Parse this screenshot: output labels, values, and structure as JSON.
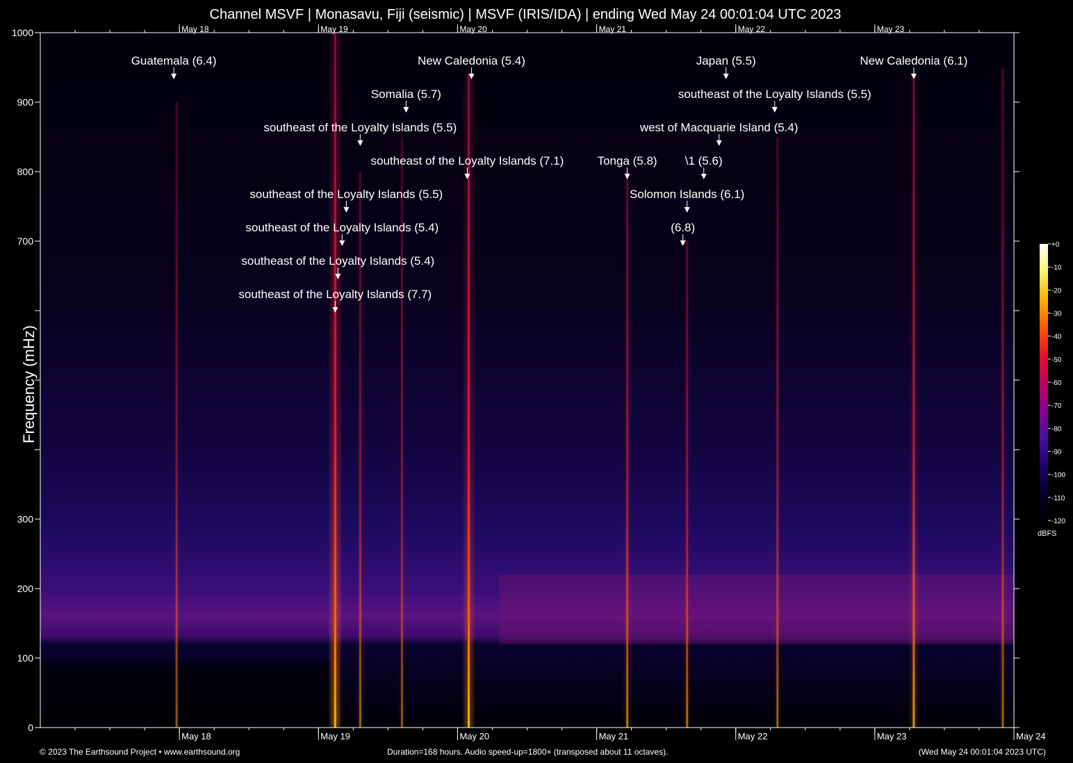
{
  "chart_data": {
    "type": "heatmap",
    "title": "Channel MSVF | Monasavu, Fiji (seismic) | MSVF (IRIS/IDA) | ending Wed May 24 00:01:04 UTC 2023",
    "ylabel": "Frequency (mHz)",
    "xlabel": "",
    "ylim": [
      0,
      1000
    ],
    "y_ticks": [
      {
        "value": 0,
        "label": "0"
      },
      {
        "value": 100,
        "label": "100"
      },
      {
        "value": 200,
        "label": "200"
      },
      {
        "value": 300,
        "label": "300"
      },
      {
        "value": 400,
        "label": ""
      },
      {
        "value": 500,
        "label": ""
      },
      {
        "value": 600,
        "label": ""
      },
      {
        "value": 700,
        "label": "700"
      },
      {
        "value": 800,
        "label": "800"
      },
      {
        "value": 900,
        "label": "900"
      },
      {
        "value": 1000,
        "label": "1000"
      }
    ],
    "x_range_days": [
      0,
      7
    ],
    "x_ticks": [
      {
        "day": 1,
        "label": "May 18"
      },
      {
        "day": 2,
        "label": "May 19"
      },
      {
        "day": 3,
        "label": "May 20"
      },
      {
        "day": 4,
        "label": "May 21"
      },
      {
        "day": 5,
        "label": "May 22"
      },
      {
        "day": 6,
        "label": "May 23"
      },
      {
        "day": 7,
        "label": "May 24"
      }
    ],
    "colorbar": {
      "label": "dBFS",
      "range": [
        -120,
        0
      ],
      "ticks": [
        "+0",
        "-10",
        "-20",
        "-30",
        "-40",
        "-50",
        "-60",
        "-70",
        "-80",
        "-90",
        "-100",
        "-110",
        "-120"
      ],
      "colors": [
        "#ffffff",
        "#fff36a",
        "#ffb000",
        "#ff5a00",
        "#e8102a",
        "#c00060",
        "#8a0090",
        "#4a10a0",
        "#200070",
        "#06002a",
        "#000000"
      ]
    },
    "events": [
      {
        "label": "Guatemala (6.4)",
        "day": 0.96,
        "row": 0
      },
      {
        "label": "New Caledonia (5.4)",
        "day": 3.1,
        "row": 0
      },
      {
        "label": "Japan (5.5)",
        "day": 4.93,
        "row": 0
      },
      {
        "label": "New Caledonia (6.1)",
        "day": 6.28,
        "row": 0
      },
      {
        "label": "Somalia (5.7)",
        "day": 2.63,
        "row": 1
      },
      {
        "label": "southeast of the Loyalty Islands (5.5)",
        "day": 5.28,
        "row": 1
      },
      {
        "label": "southeast of the Loyalty Islands (5.5)",
        "day": 2.3,
        "row": 2
      },
      {
        "label": "west of Macquarie Island (5.4)",
        "day": 4.88,
        "row": 2
      },
      {
        "label": "southeast of the Loyalty Islands (7.1)",
        "day": 3.07,
        "row": 3
      },
      {
        "label": "Tonga (5.8)",
        "day": 4.22,
        "row": 3
      },
      {
        "label": "\\1 (5.6)",
        "day": 4.77,
        "row": 3
      },
      {
        "label": "southeast of the Loyalty Islands (5.5)",
        "day": 2.2,
        "row": 4
      },
      {
        "label": "Solomon Islands (6.1)",
        "day": 4.65,
        "row": 4
      },
      {
        "label": "southeast of the Loyalty Islands (5.4)",
        "day": 2.17,
        "row": 5
      },
      {
        "label": "(6.8)",
        "day": 4.62,
        "row": 5
      },
      {
        "label": "southeast of the Loyalty Islands (5.4)",
        "day": 2.14,
        "row": 6
      },
      {
        "label": "southeast of the Loyalty Islands (7.7)",
        "day": 2.12,
        "row": 7
      }
    ],
    "spectral_lines": [
      {
        "day": 2.12,
        "intensity": 1.0,
        "top": 1000
      },
      {
        "day": 3.08,
        "intensity": 0.85,
        "top": 940
      },
      {
        "day": 6.28,
        "intensity": 0.5,
        "top": 940
      },
      {
        "day": 4.22,
        "intensity": 0.35,
        "top": 800
      },
      {
        "day": 4.65,
        "intensity": 0.3,
        "top": 700
      },
      {
        "day": 0.98,
        "intensity": 0.2,
        "top": 900
      },
      {
        "day": 5.3,
        "intensity": 0.25,
        "top": 850
      },
      {
        "day": 2.3,
        "intensity": 0.25,
        "top": 800
      },
      {
        "day": 2.6,
        "intensity": 0.2,
        "top": 850
      },
      {
        "day": 6.92,
        "intensity": 0.25,
        "top": 950
      }
    ]
  },
  "footer": {
    "left": "© 2023 The Earthsound Project • www.earthsound.org",
    "middle": "Duration=168 hours. Audio speed-up=1800× (transposed about 11 octaves).",
    "right": "(Wed May 24 00:01:04 2023 UTC)"
  }
}
